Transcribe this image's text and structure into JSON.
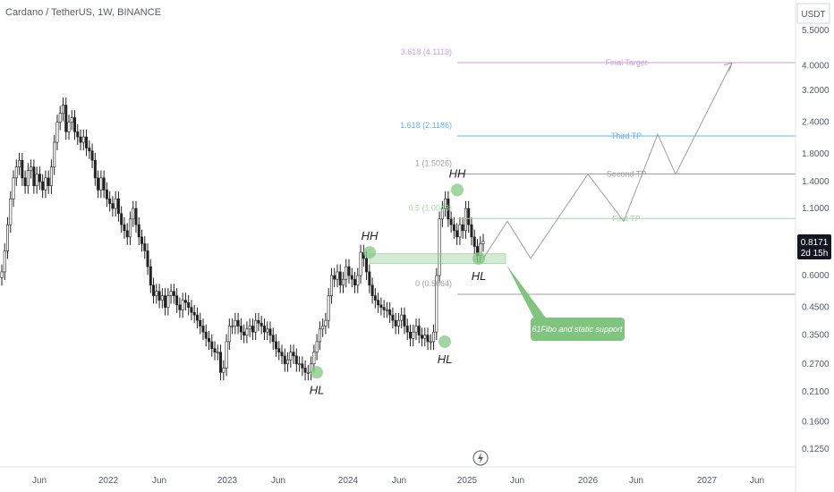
{
  "title": "Cardano / TetherUS, 1W, BINANCE",
  "currency_label": "USDT",
  "price_badge": {
    "price": "0.8171",
    "countdown": "2d 15h"
  },
  "colors": {
    "up": "#222222",
    "down": "#222222",
    "fib_purple": "#c8a2d6",
    "fib_blue": "#64b5f6",
    "fib_gray": "#9e9e9e",
    "fib_green": "#a5d6a7",
    "pivot_fill": "#81c784",
    "callout": "#7fc47f"
  },
  "chart_data": {
    "type": "candlestick",
    "scale": "log",
    "x_ticks": [
      "Jun",
      "2022",
      "Jun",
      "2023",
      "Jun",
      "2024",
      "Jun",
      "2025",
      "Jun",
      "2026",
      "Jun",
      "2027",
      "Jun"
    ],
    "y_ticks": [
      "5.5000",
      "4.0000",
      "3.2000",
      "2.4000",
      "1.8000",
      "1.4000",
      "1.1000",
      "0.8171",
      "0.6000",
      "0.4500",
      "0.3500",
      "0.2700",
      "0.2100",
      "0.1600",
      "0.1250"
    ],
    "y_tick_values": [
      5.5,
      4.0,
      3.2,
      2.4,
      1.8,
      1.4,
      1.1,
      0.8171,
      0.6,
      0.45,
      0.35,
      0.27,
      0.21,
      0.16,
      0.125
    ],
    "series": [
      {
        "values": [
          0.62,
          0.75,
          0.95,
          1.2,
          1.45,
          1.6,
          1.7,
          1.45,
          1.35,
          1.55,
          1.6,
          1.35,
          1.5,
          1.4,
          1.3,
          1.45,
          1.35,
          1.6,
          2.0,
          2.4,
          2.6,
          2.8,
          2.2,
          2.4,
          2.5,
          2.2,
          2.1,
          2.0,
          2.1,
          1.9,
          1.85,
          1.7,
          1.45,
          1.3,
          1.45,
          1.3,
          1.2,
          1.15,
          1.1,
          1.2,
          1.05,
          0.95,
          0.9,
          0.85,
          1.0,
          1.1,
          0.95,
          0.85,
          0.8,
          0.75,
          0.65,
          0.55,
          0.5,
          0.52,
          0.48,
          0.5,
          0.45,
          0.5,
          0.52,
          0.5,
          0.46,
          0.44,
          0.48,
          0.47,
          0.45,
          0.43,
          0.42,
          0.4,
          0.38,
          0.36,
          0.34,
          0.33,
          0.31,
          0.3,
          0.3,
          0.25,
          0.26,
          0.33,
          0.38,
          0.38,
          0.4,
          0.38,
          0.36,
          0.35,
          0.37,
          0.38,
          0.36,
          0.4,
          0.39,
          0.38,
          0.36,
          0.37,
          0.35,
          0.33,
          0.31,
          0.3,
          0.29,
          0.27,
          0.28,
          0.3,
          0.29,
          0.27,
          0.27,
          0.26,
          0.25,
          0.25,
          0.27,
          0.3,
          0.33,
          0.37,
          0.38,
          0.4,
          0.5,
          0.6,
          0.58,
          0.62,
          0.55,
          0.58,
          0.65,
          0.6,
          0.58,
          0.55,
          0.6,
          0.74,
          0.7,
          0.62,
          0.55,
          0.5,
          0.48,
          0.46,
          0.45,
          0.44,
          0.44,
          0.42,
          0.4,
          0.38,
          0.4,
          0.42,
          0.38,
          0.36,
          0.34,
          0.36,
          0.38,
          0.35,
          0.34,
          0.35,
          0.33,
          0.33,
          0.36,
          0.6,
          1.0,
          1.1,
          1.2,
          1.0,
          0.95,
          0.9,
          0.85,
          0.95,
          0.9,
          1.1,
          0.95,
          0.85,
          0.78,
          0.72,
          0.8,
          0.8171
        ]
      }
    ],
    "fib_levels": [
      {
        "label": "3.618 (4.1119)",
        "value": 4.1119,
        "target": "Final Target",
        "color": "#c8a2d6"
      },
      {
        "label": "1.618 (2.1186)",
        "value": 2.1186,
        "target": "Third TP",
        "color": "#64b5f6"
      },
      {
        "label": "1 (1.5026)",
        "value": 1.5026,
        "target": "Second TP",
        "color": "#9e9e9e"
      },
      {
        "label": "0.5 (1.0043)",
        "value": 1.0043,
        "target": "First TP",
        "color": "#a5d6a7"
      },
      {
        "label": "0 (0.5064)",
        "value": 0.5064,
        "target": "",
        "color": "#9e9e9e"
      }
    ],
    "pivots": [
      {
        "label": "HL",
        "value": 0.25
      },
      {
        "label": "HH",
        "value": 0.74
      },
      {
        "label": "HL",
        "value": 0.33
      },
      {
        "label": "HH",
        "value": 1.3
      },
      {
        "label": "HL",
        "value": 0.7
      }
    ],
    "support_zone": [
      0.67,
      0.73
    ],
    "callout": "61Fibo and static support",
    "projection": [
      0.7,
      0.98,
      0.7,
      1.5,
      0.98,
      2.15,
      1.5,
      4.1119
    ]
  }
}
